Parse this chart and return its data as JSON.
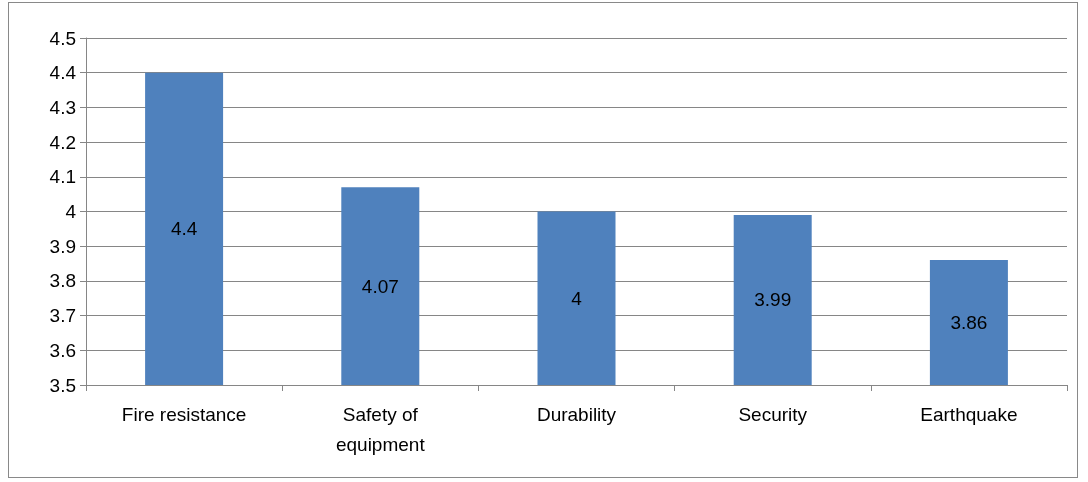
{
  "chart_data": {
    "type": "bar",
    "categories": [
      "Fire resistance",
      "Safety of equipment",
      "Durability",
      "Security",
      "Earthquake"
    ],
    "values": [
      4.4,
      4.07,
      4,
      3.99,
      3.86
    ],
    "color": "#4f81bd",
    "ylim": [
      3.5,
      4.5
    ],
    "yticks": [
      3.5,
      3.6,
      3.7,
      3.8,
      3.9,
      4,
      4.1,
      4.2,
      4.3,
      4.4,
      4.5
    ],
    "grid": "y",
    "data_labels": true
  }
}
